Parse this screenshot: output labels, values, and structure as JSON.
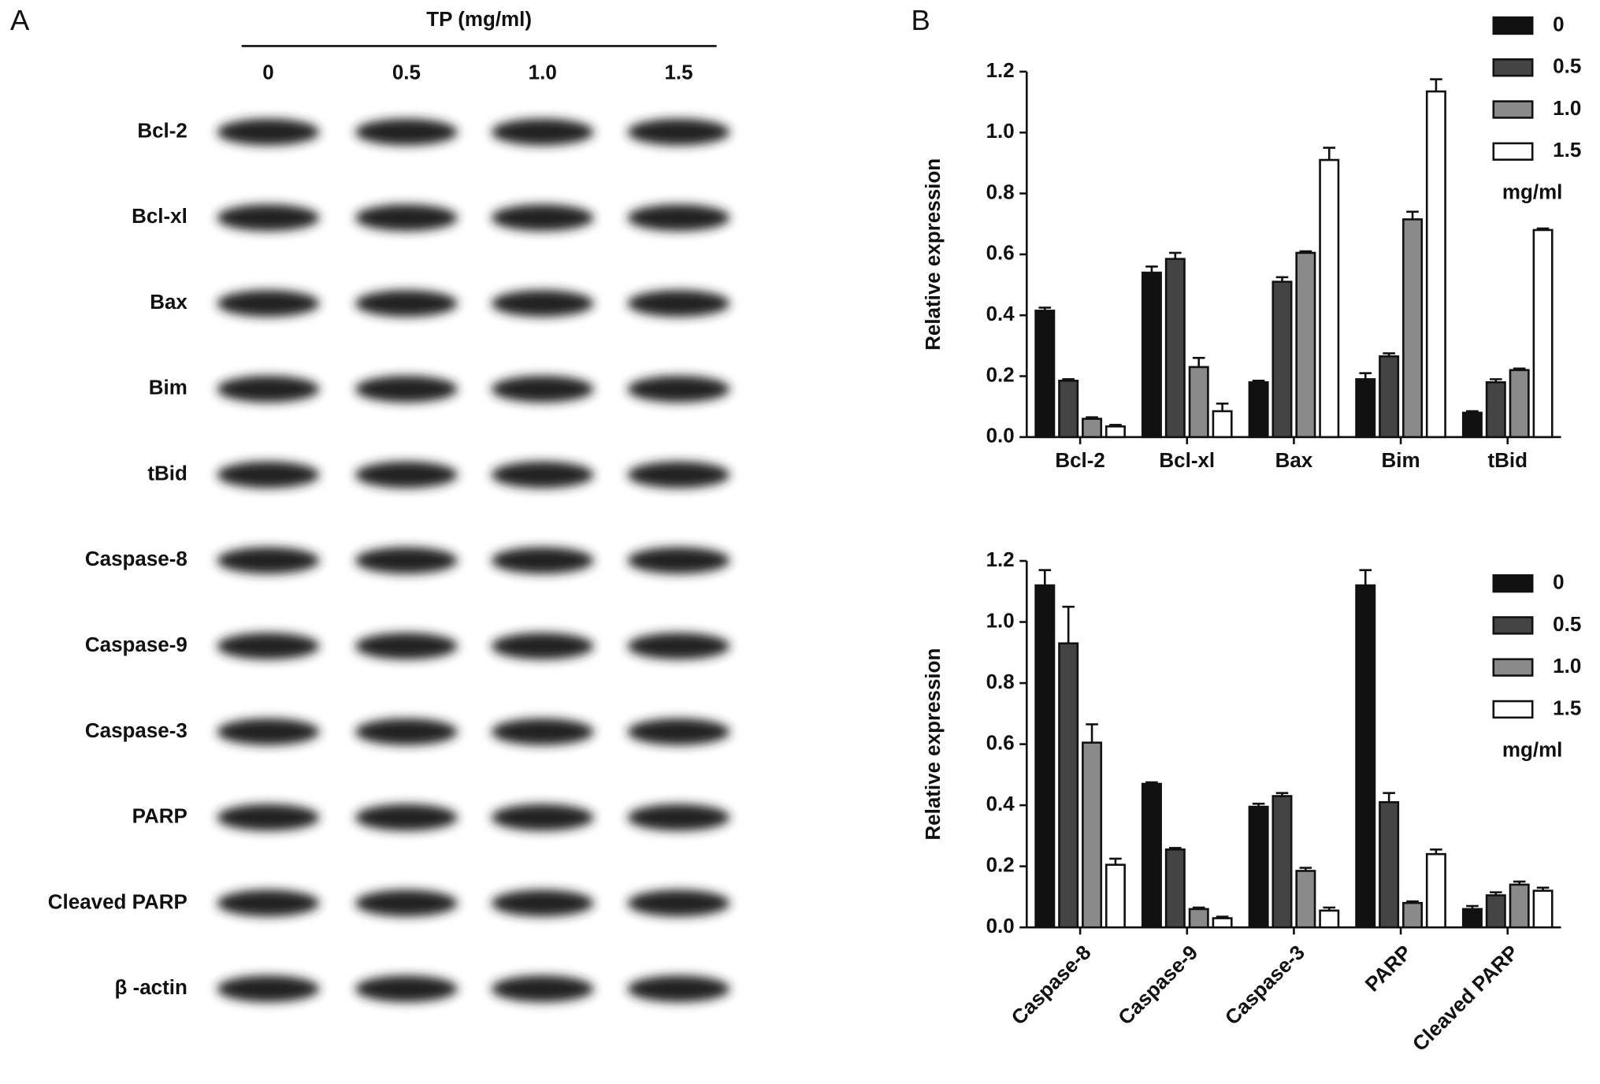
{
  "blot": {
    "panel": "A",
    "header": "TP (mg/ml)",
    "lanes": [
      "0",
      "0.5",
      "1.0",
      "1.5"
    ],
    "rows": [
      "Bcl-2",
      "Bcl-xl",
      "Bax",
      "Bim",
      "tBid",
      "Caspase-8",
      "Caspase-9",
      "Caspase-3",
      "PARP",
      "Cleaved PARP",
      "β -actin"
    ]
  },
  "chart_data": [
    {
      "type": "bar",
      "panel": "B",
      "y_label": "Relative expression",
      "legend_title": "mg/ml",
      "legend": "upper right",
      "categories": [
        "Bcl-2",
        "Bcl-xl",
        "Bax",
        "Bim",
        "tBid"
      ],
      "ylim": [
        0,
        1.2
      ],
      "yticks": [
        {
          "value": 0,
          "label": "0.0"
        },
        {
          "value": 0.2,
          "label": "0.2"
        },
        {
          "value": 0.4,
          "label": "0.4"
        },
        {
          "value": 0.6,
          "label": "0.6"
        },
        {
          "value": 0.8,
          "label": "0.8"
        },
        {
          "value": 1.0,
          "label": "1.0"
        },
        {
          "value": 1.2,
          "label": "1.2"
        }
      ],
      "series": [
        {
          "name": "0",
          "color": "#111111",
          "values": [
            0.415,
            0.54,
            0.18,
            0.19,
            0.08
          ],
          "errors": [
            0.01,
            0.02,
            0.005,
            0.02,
            0.005
          ]
        },
        {
          "name": "0.5",
          "color": "#444444",
          "values": [
            0.185,
            0.585,
            0.51,
            0.265,
            0.18
          ],
          "errors": [
            0.005,
            0.02,
            0.015,
            0.01,
            0.01
          ]
        },
        {
          "name": "1.0",
          "color": "#8a8a8a",
          "values": [
            0.06,
            0.23,
            0.605,
            0.715,
            0.22
          ],
          "errors": [
            0.005,
            0.03,
            0.005,
            0.025,
            0.005
          ]
        },
        {
          "name": "1.5",
          "color": "#ffffff",
          "values": [
            0.035,
            0.085,
            0.91,
            1.135,
            0.68
          ],
          "errors": [
            0.005,
            0.025,
            0.04,
            0.04,
            0.005
          ]
        }
      ]
    },
    {
      "type": "bar",
      "y_label": "Relative expression",
      "legend_title": "mg/ml",
      "legend": "upper right",
      "categories": [
        "Caspase-8",
        "Caspase-9",
        "Caspase-3",
        "PARP",
        "Cleaved PARP"
      ],
      "ylim": [
        0,
        1.2
      ],
      "yticks": [
        {
          "value": 0,
          "label": "0.0"
        },
        {
          "value": 0.2,
          "label": "0.2"
        },
        {
          "value": 0.4,
          "label": "0.4"
        },
        {
          "value": 0.6,
          "label": "0.6"
        },
        {
          "value": 0.8,
          "label": "0.8"
        },
        {
          "value": 1.0,
          "label": "1.0"
        },
        {
          "value": 1.2,
          "label": "1.2"
        }
      ],
      "series": [
        {
          "name": "0",
          "color": "#111111",
          "values": [
            1.12,
            0.47,
            0.395,
            1.12,
            0.06
          ],
          "errors": [
            0.05,
            0.005,
            0.01,
            0.05,
            0.01
          ]
        },
        {
          "name": "0.5",
          "color": "#444444",
          "values": [
            0.93,
            0.255,
            0.43,
            0.41,
            0.105
          ],
          "errors": [
            0.12,
            0.005,
            0.01,
            0.03,
            0.01
          ]
        },
        {
          "name": "1.0",
          "color": "#8a8a8a",
          "values": [
            0.605,
            0.06,
            0.185,
            0.08,
            0.14
          ],
          "errors": [
            0.06,
            0.005,
            0.01,
            0.005,
            0.01
          ]
        },
        {
          "name": "1.5",
          "color": "#ffffff",
          "values": [
            0.205,
            0.03,
            0.055,
            0.24,
            0.12
          ],
          "errors": [
            0.02,
            0.005,
            0.01,
            0.015,
            0.01
          ]
        }
      ]
    }
  ]
}
